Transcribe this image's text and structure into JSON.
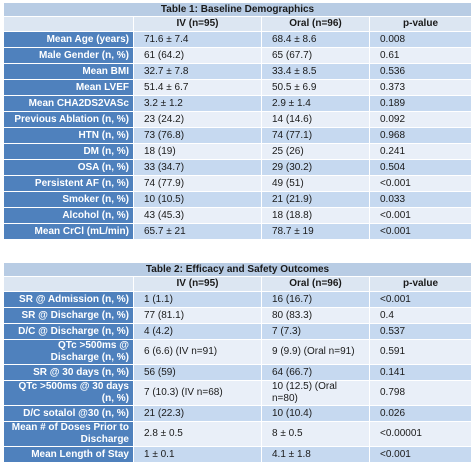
{
  "tables": [
    {
      "title": "Table 1: Baseline Demographics",
      "header": [
        "IV (n=95)",
        "Oral (n=96)",
        "p-value"
      ],
      "rows": [
        [
          "Mean Age (years)",
          "71.6 ± 7.4",
          "68.4 ± 8.6",
          "0.008"
        ],
        [
          "Male Gender (n, %)",
          "61 (64.2)",
          "65 (67.7)",
          "0.61"
        ],
        [
          "Mean BMI",
          "32.7 ± 7.8",
          "33.4 ± 8.5",
          "0.536"
        ],
        [
          "Mean LVEF",
          "51.4 ± 6.7",
          "50.5 ± 6.9",
          "0.373"
        ],
        [
          "Mean CHA2DS2VASc",
          "3.2 ± 1.2",
          "2.9 ± 1.4",
          "0.189"
        ],
        [
          "Previous Ablation (n, %)",
          "23 (24.2)",
          "14 (14.6)",
          "0.092"
        ],
        [
          "HTN (n, %)",
          "73 (76.8)",
          "74 (77.1)",
          "0.968"
        ],
        [
          "DM (n, %)",
          "18 (19)",
          "25 (26)",
          "0.241"
        ],
        [
          "OSA (n, %)",
          "33 (34.7)",
          "29 (30.2)",
          "0.504"
        ],
        [
          "Persistent AF (n, %)",
          "74 (77.9)",
          "49 (51)",
          "<0.001"
        ],
        [
          "Smoker (n, %)",
          "10 (10.5)",
          "21 (21.9)",
          "0.033"
        ],
        [
          "Alcohol (n, %)",
          "43 (45.3)",
          "18 (18.8)",
          "<0.001"
        ],
        [
          "Mean CrCl (mL/min)",
          "65.7 ± 21",
          "78.7 ± 19",
          "<0.001"
        ]
      ]
    },
    {
      "title": "Table 2: Efficacy and Safety Outcomes",
      "header": [
        "IV (n=95)",
        "Oral (n=96)",
        "p-value"
      ],
      "rows": [
        [
          "SR @ Admission (n, %)",
          "1 (1.1)",
          "16 (16.7)",
          "<0.001"
        ],
        [
          "SR @ Discharge (n, %)",
          "77 (81.1)",
          "80 (83.3)",
          "0.4"
        ],
        [
          "D/C @ Discharge (n, %)",
          "4 (4.2)",
          "7 (7.3)",
          "0.537"
        ],
        [
          "QTc >500ms @ Discharge (n, %)",
          "6 (6.6) (IV n=91)",
          "9 (9.9) (Oral n=91)",
          "0.591"
        ],
        [
          "SR @ 30 days (n, %)",
          "56 (59)",
          "64 (66.7)",
          "0.141"
        ],
        [
          "QTc >500ms @ 30 days (n, %)",
          "7 (10.3) (IV n=68)",
          "10 (12.5) (Oral n=80)",
          "0.798"
        ],
        [
          "D/C sotalol @30 (n, %)",
          "21 (22.3)",
          "10 (10.4)",
          "0.026"
        ],
        [
          "Mean # of Doses Prior to Discharge",
          "2.8 ± 0.5",
          "8 ± 0.5",
          "<0.00001"
        ],
        [
          "Mean Length of Stay",
          "1 ± 0.1",
          "4.1 ± 1.8",
          "<0.001"
        ]
      ]
    }
  ]
}
